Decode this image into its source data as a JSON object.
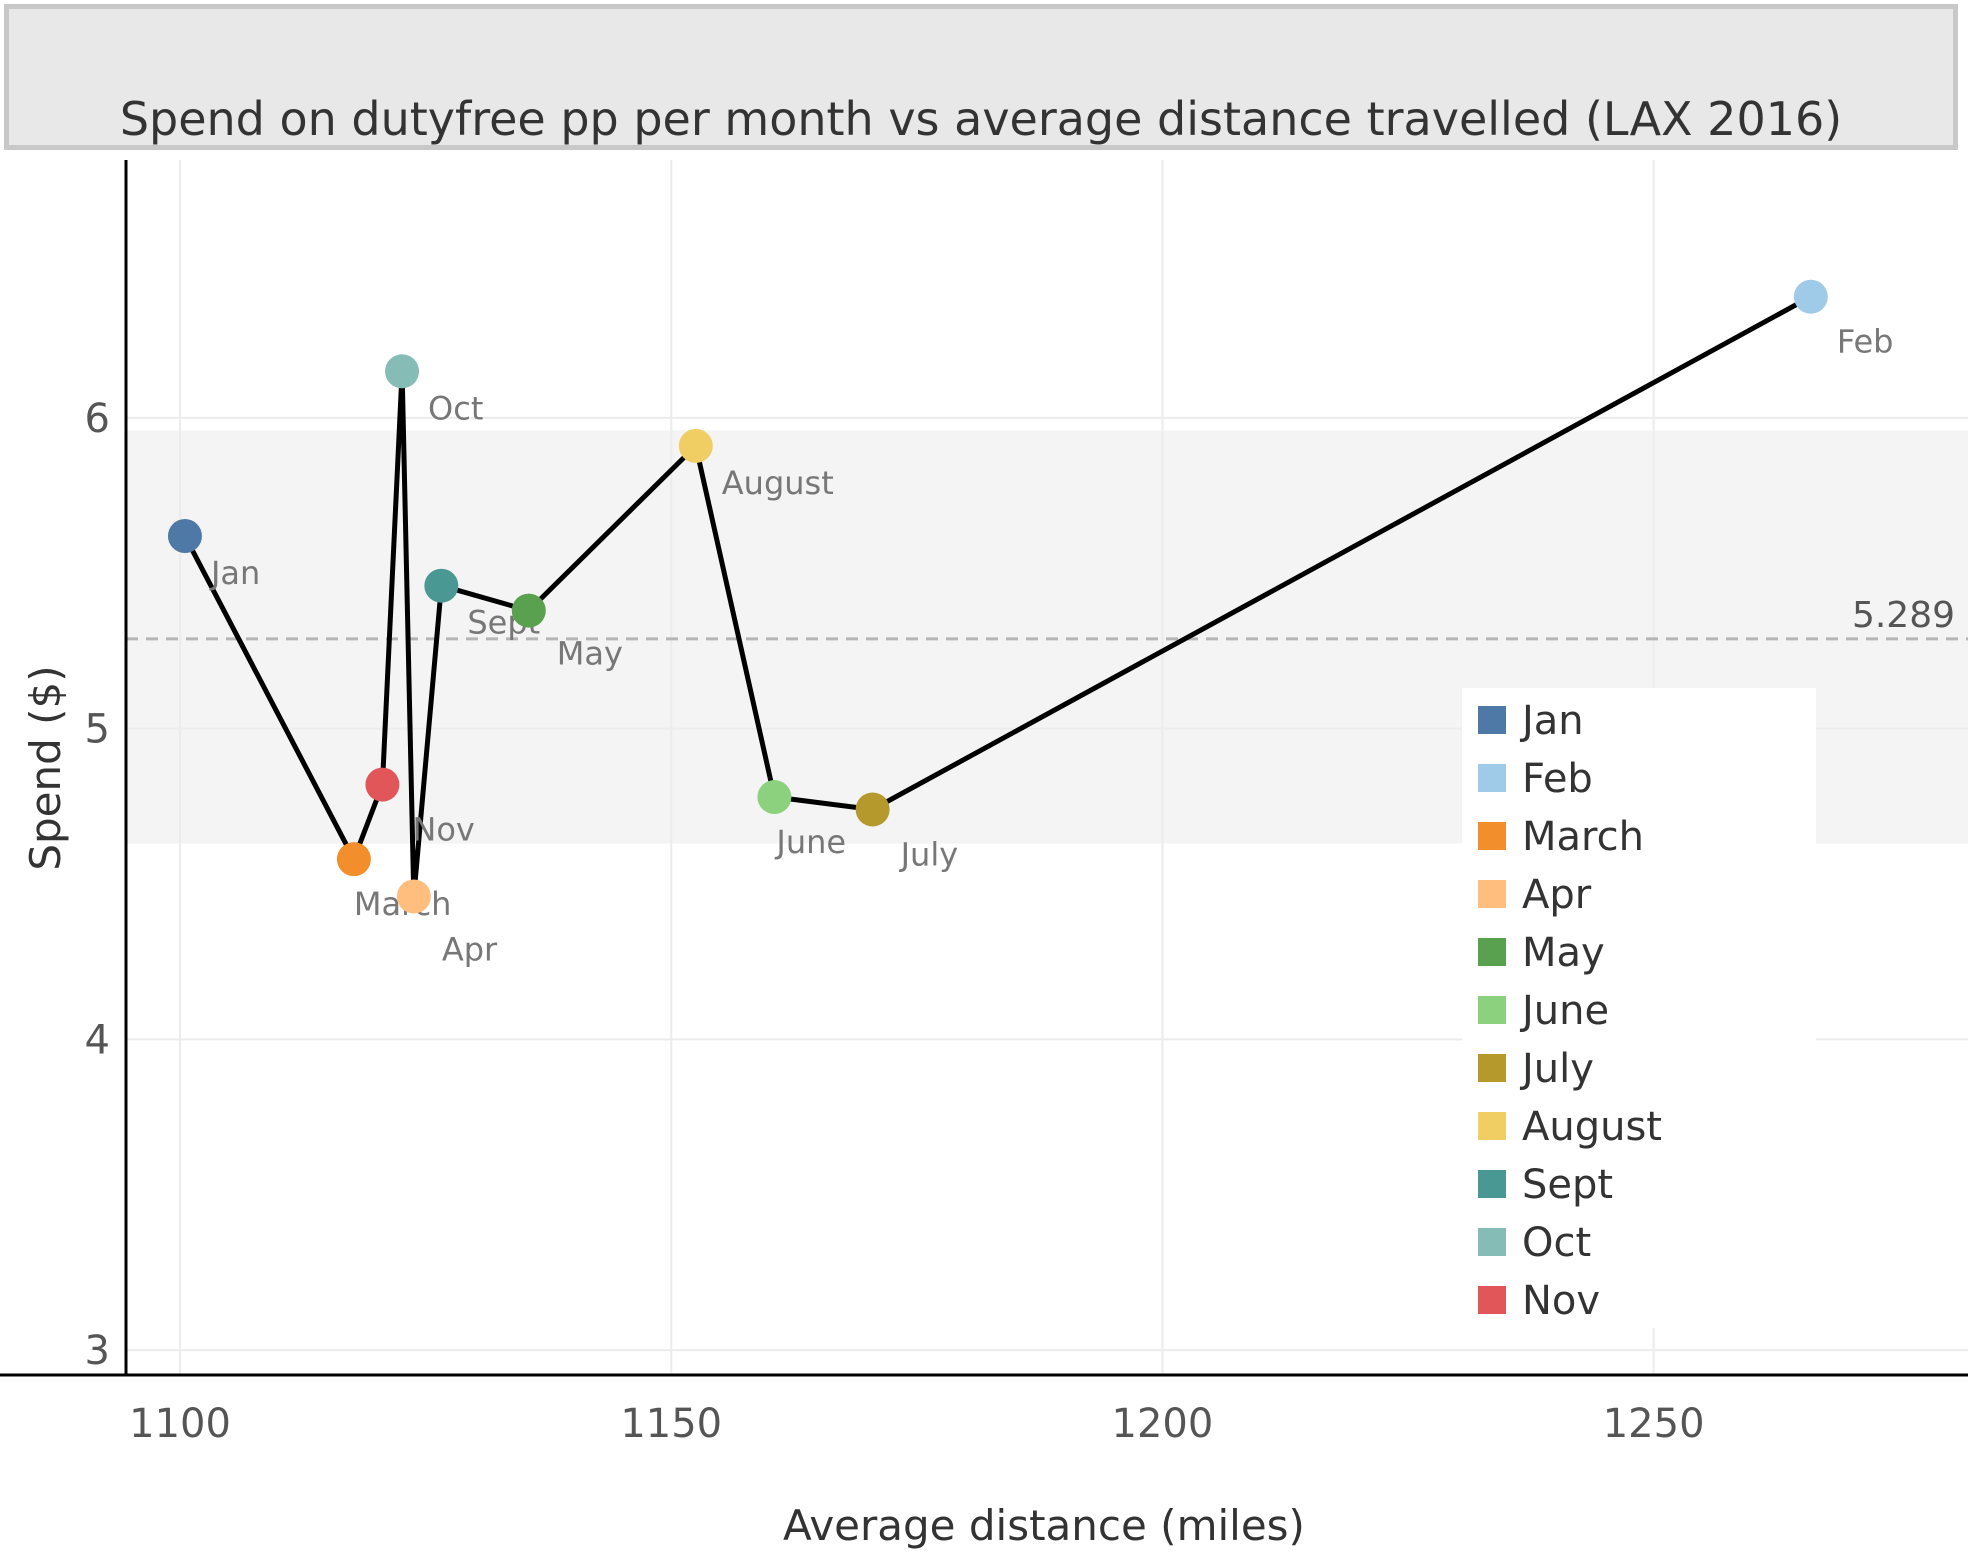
{
  "title": "Spend on dutyfree pp per month vs average distance travelled (LAX 2016)",
  "chart_data": {
    "type": "scatter",
    "connected": true,
    "title": "Spend on dutyfree pp per month vs average distance travelled (LAX 2016)",
    "xlabel": "Average distance (miles)",
    "ylabel": "Spend ($)",
    "xlim": [
      1094.5,
      1282
    ],
    "ylim": [
      2.92,
      6.83
    ],
    "xticks": [
      1100,
      1150,
      1200,
      1250
    ],
    "yticks": [
      3,
      4,
      5,
      6
    ],
    "grid": true,
    "legend_position": "right",
    "reference_line": {
      "value": 5.289,
      "label": "5.289"
    },
    "reference_band": [
      4.63,
      5.96
    ],
    "points": [
      {
        "label": "Jan",
        "x": 1100.5,
        "y": 5.62,
        "color": "#4e79a7"
      },
      {
        "label": "March",
        "x": 1117.7,
        "y": 4.58,
        "color": "#f28e2b"
      },
      {
        "label": "Nov",
        "x": 1120.6,
        "y": 4.82,
        "color": "#e15759"
      },
      {
        "label": "Oct",
        "x": 1122.6,
        "y": 6.15,
        "color": "#86bcb6"
      },
      {
        "label": "Apr",
        "x": 1123.8,
        "y": 4.46,
        "color": "#ffbe7d"
      },
      {
        "label": "Sept",
        "x": 1126.6,
        "y": 5.46,
        "color": "#499894"
      },
      {
        "label": "May",
        "x": 1135.5,
        "y": 5.38,
        "color": "#59a14f"
      },
      {
        "label": "August",
        "x": 1152.5,
        "y": 5.91,
        "color": "#f1ce63"
      },
      {
        "label": "June",
        "x": 1160.5,
        "y": 4.78,
        "color": "#8cd17d"
      },
      {
        "label": "July",
        "x": 1170.5,
        "y": 4.74,
        "color": "#b6992d"
      },
      {
        "label": "Feb",
        "x": 1266.0,
        "y": 6.39,
        "color": "#a0cbe8"
      }
    ],
    "legend": [
      {
        "label": "Jan",
        "color": "#4e79a7"
      },
      {
        "label": "Feb",
        "color": "#a0cbe8"
      },
      {
        "label": "March",
        "color": "#f28e2b"
      },
      {
        "label": "Apr",
        "color": "#ffbe7d"
      },
      {
        "label": "May",
        "color": "#59a14f"
      },
      {
        "label": "June",
        "color": "#8cd17d"
      },
      {
        "label": "July",
        "color": "#b6992d"
      },
      {
        "label": "August",
        "color": "#f1ce63"
      },
      {
        "label": "Sept",
        "color": "#499894"
      },
      {
        "label": "Oct",
        "color": "#86bcb6"
      },
      {
        "label": "Nov",
        "color": "#e15759"
      }
    ]
  }
}
